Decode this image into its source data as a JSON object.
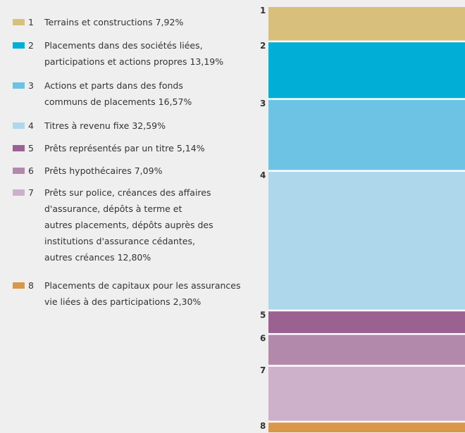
{
  "chart_data": {
    "type": "stacked-column",
    "series": [
      {
        "number": "1",
        "name": "Terrains et constructions",
        "color": "#d9bf7c",
        "values": [
          7.92
        ],
        "value_labels": [
          "7,92%"
        ]
      },
      {
        "number": "2",
        "name": "Placements dans des sociétés liées,\nparticipations et actions propres",
        "color": "#00aed6",
        "values": [
          13.19
        ],
        "value_labels": [
          "13,19%"
        ]
      },
      {
        "number": "3",
        "name": "Actions et parts dans des fonds\ncommuns de placements",
        "color": "#6dc3e3",
        "values": [
          16.57
        ],
        "value_labels": [
          "16,57%"
        ]
      },
      {
        "number": "4",
        "name": "Titres à revenu fixe",
        "color": "#afd7ec",
        "values": [
          32.59
        ],
        "value_labels": [
          "32,59%"
        ]
      },
      {
        "number": "5",
        "name": "Prêts représentés par un titre",
        "color": "#9b6191",
        "values": [
          5.14
        ],
        "value_labels": [
          "5,14%"
        ]
      },
      {
        "number": "6",
        "name": "Prêts hypothécaires",
        "color": "#b389ab",
        "values": [
          7.09
        ],
        "value_labels": [
          "7,09%"
        ]
      },
      {
        "number": "7",
        "name": "Prêts sur police, créances des affaires\nd'assurance, dépôts à terme et\nautres placements, dépôts auprès des\ninstitutions d'assurance cédantes,\nautres créances",
        "color": "#cdb1cb",
        "values": [
          12.8
        ],
        "value_labels": [
          "12,80%"
        ]
      },
      {
        "number": "8",
        "name": "Placements de capitaux pour les assurances\nvie liées à des participations",
        "color": "#d9974a",
        "values": [
          2.3
        ],
        "value_labels": [
          "2,30%"
        ]
      }
    ]
  }
}
